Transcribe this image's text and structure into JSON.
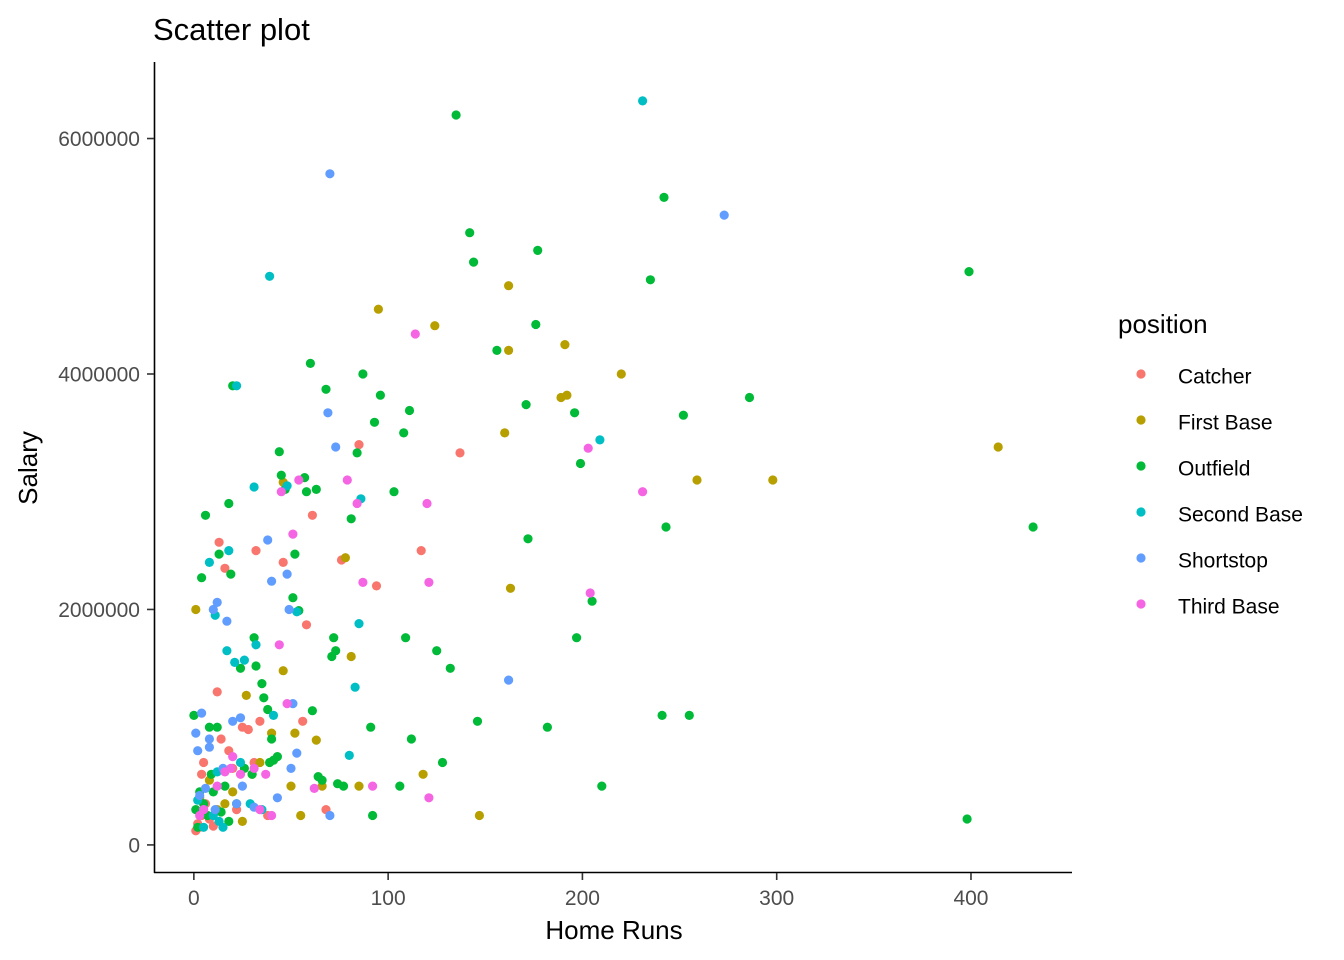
{
  "chart_data": {
    "type": "scatter",
    "title": "Scatter plot",
    "xlabel": "Home Runs",
    "ylabel": "Salary",
    "xlim": [
      -20,
      452
    ],
    "ylim": [
      -230000,
      6650000
    ],
    "xticks": [
      0,
      100,
      200,
      300,
      400
    ],
    "xtick_labels": [
      "0",
      "100",
      "200",
      "300",
      "400"
    ],
    "yticks": [
      0,
      2000000,
      4000000,
      6000000
    ],
    "ytick_labels": [
      "0",
      "2000000",
      "4000000",
      "6000000"
    ],
    "grid": false,
    "legend": {
      "title": "position",
      "placement": "right",
      "entries": [
        "Catcher",
        "First Base",
        "Outfield",
        "Second Base",
        "Shortstop",
        "Third Base"
      ]
    },
    "colors": {
      "Catcher": "#F8766D",
      "First Base": "#B79F00",
      "Outfield": "#00BA38",
      "Second Base": "#00BFC4",
      "Shortstop": "#619CFF",
      "Third Base": "#F564E3"
    },
    "series": [
      {
        "name": "Catcher",
        "points": [
          [
            1,
            120000
          ],
          [
            2,
            180000
          ],
          [
            3,
            150000
          ],
          [
            4,
            250000
          ],
          [
            5,
            700000
          ],
          [
            6,
            350000
          ],
          [
            8,
            220000
          ],
          [
            10,
            160000
          ],
          [
            12,
            1300000
          ],
          [
            13,
            2570000
          ],
          [
            14,
            900000
          ],
          [
            16,
            2350000
          ],
          [
            18,
            800000
          ],
          [
            20,
            650000
          ],
          [
            22,
            300000
          ],
          [
            25,
            1000000
          ],
          [
            28,
            980000
          ],
          [
            31,
            700000
          ],
          [
            32,
            2500000
          ],
          [
            34,
            1050000
          ],
          [
            38,
            250000
          ],
          [
            46,
            2400000
          ],
          [
            56,
            1050000
          ],
          [
            58,
            1870000
          ],
          [
            61,
            2800000
          ],
          [
            68,
            300000
          ],
          [
            76,
            2420000
          ],
          [
            85,
            3400000
          ],
          [
            94,
            2200000
          ],
          [
            117,
            2500000
          ],
          [
            137,
            3330000
          ],
          [
            4,
            600000
          ]
        ]
      },
      {
        "name": "First Base",
        "points": [
          [
            1,
            2000000
          ],
          [
            3,
            400000
          ],
          [
            8,
            550000
          ],
          [
            12,
            300000
          ],
          [
            16,
            350000
          ],
          [
            20,
            450000
          ],
          [
            25,
            200000
          ],
          [
            27,
            1270000
          ],
          [
            30,
            600000
          ],
          [
            34,
            700000
          ],
          [
            40,
            950000
          ],
          [
            46,
            1480000
          ],
          [
            46,
            3080000
          ],
          [
            50,
            500000
          ],
          [
            52,
            950000
          ],
          [
            55,
            250000
          ],
          [
            63,
            890000
          ],
          [
            66,
            500000
          ],
          [
            78,
            2440000
          ],
          [
            81,
            1600000
          ],
          [
            85,
            500000
          ],
          [
            95,
            4550000
          ],
          [
            118,
            600000
          ],
          [
            124,
            4410000
          ],
          [
            147,
            250000
          ],
          [
            160,
            3500000
          ],
          [
            162,
            4200000
          ],
          [
            162,
            4750000
          ],
          [
            163,
            2180000
          ],
          [
            189,
            3800000
          ],
          [
            191,
            4250000
          ],
          [
            192,
            3820000
          ],
          [
            220,
            4000000
          ],
          [
            259,
            3100000
          ],
          [
            298,
            3100000
          ],
          [
            414,
            3380000
          ]
        ]
      },
      {
        "name": "Outfield",
        "points": [
          [
            0,
            1100000
          ],
          [
            1,
            300000
          ],
          [
            2,
            150000
          ],
          [
            3,
            450000
          ],
          [
            4,
            2270000
          ],
          [
            5,
            350000
          ],
          [
            6,
            2800000
          ],
          [
            7,
            250000
          ],
          [
            8,
            1000000
          ],
          [
            9,
            600000
          ],
          [
            10,
            450000
          ],
          [
            12,
            1000000
          ],
          [
            13,
            2470000
          ],
          [
            14,
            280000
          ],
          [
            16,
            500000
          ],
          [
            18,
            2900000
          ],
          [
            18,
            200000
          ],
          [
            19,
            2300000
          ],
          [
            20,
            3900000
          ],
          [
            22,
            350000
          ],
          [
            24,
            1500000
          ],
          [
            26,
            650000
          ],
          [
            30,
            600000
          ],
          [
            31,
            1760000
          ],
          [
            32,
            1520000
          ],
          [
            35,
            1370000
          ],
          [
            36,
            1250000
          ],
          [
            38,
            1150000
          ],
          [
            39,
            700000
          ],
          [
            40,
            900000
          ],
          [
            41,
            720000
          ],
          [
            43,
            750000
          ],
          [
            44,
            3340000
          ],
          [
            45,
            3140000
          ],
          [
            47,
            3020000
          ],
          [
            51,
            2100000
          ],
          [
            52,
            2470000
          ],
          [
            54,
            1990000
          ],
          [
            57,
            3120000
          ],
          [
            58,
            3000000
          ],
          [
            60,
            4090000
          ],
          [
            61,
            1140000
          ],
          [
            63,
            3020000
          ],
          [
            64,
            580000
          ],
          [
            66,
            550000
          ],
          [
            68,
            3870000
          ],
          [
            71,
            1600000
          ],
          [
            72,
            1760000
          ],
          [
            73,
            1650000
          ],
          [
            74,
            520000
          ],
          [
            77,
            500000
          ],
          [
            81,
            2770000
          ],
          [
            84,
            3330000
          ],
          [
            87,
            4000000
          ],
          [
            91,
            1000000
          ],
          [
            92,
            250000
          ],
          [
            93,
            3590000
          ],
          [
            96,
            3820000
          ],
          [
            103,
            3000000
          ],
          [
            106,
            500000
          ],
          [
            108,
            3500000
          ],
          [
            109,
            1760000
          ],
          [
            111,
            3690000
          ],
          [
            112,
            900000
          ],
          [
            125,
            1650000
          ],
          [
            128,
            700000
          ],
          [
            132,
            1500000
          ],
          [
            135,
            6200000
          ],
          [
            142,
            5200000
          ],
          [
            144,
            4950000
          ],
          [
            146,
            1050000
          ],
          [
            156,
            4200000
          ],
          [
            171,
            3740000
          ],
          [
            172,
            2600000
          ],
          [
            176,
            4420000
          ],
          [
            177,
            5050000
          ],
          [
            182,
            1000000
          ],
          [
            196,
            3670000
          ],
          [
            197,
            1760000
          ],
          [
            199,
            3240000
          ],
          [
            205,
            2070000
          ],
          [
            210,
            500000
          ],
          [
            235,
            4800000
          ],
          [
            241,
            1100000
          ],
          [
            242,
            5500000
          ],
          [
            243,
            2700000
          ],
          [
            252,
            3650000
          ],
          [
            255,
            1100000
          ],
          [
            286,
            3800000
          ],
          [
            398,
            220000
          ],
          [
            399,
            4870000
          ],
          [
            432,
            2700000
          ]
        ]
      },
      {
        "name": "Second Base",
        "points": [
          [
            2,
            380000
          ],
          [
            5,
            150000
          ],
          [
            8,
            2400000
          ],
          [
            10,
            250000
          ],
          [
            11,
            1950000
          ],
          [
            12,
            620000
          ],
          [
            13,
            200000
          ],
          [
            15,
            150000
          ],
          [
            17,
            1650000
          ],
          [
            18,
            2500000
          ],
          [
            21,
            1550000
          ],
          [
            22,
            3900000
          ],
          [
            24,
            700000
          ],
          [
            26,
            1570000
          ],
          [
            29,
            350000
          ],
          [
            31,
            3040000
          ],
          [
            32,
            1700000
          ],
          [
            35,
            300000
          ],
          [
            39,
            4830000
          ],
          [
            41,
            1100000
          ],
          [
            48,
            3050000
          ],
          [
            53,
            1980000
          ],
          [
            80,
            760000
          ],
          [
            83,
            1340000
          ],
          [
            85,
            1880000
          ],
          [
            86,
            2940000
          ],
          [
            209,
            3440000
          ],
          [
            231,
            6320000
          ]
        ]
      },
      {
        "name": "Shortstop",
        "points": [
          [
            1,
            950000
          ],
          [
            2,
            800000
          ],
          [
            3,
            420000
          ],
          [
            4,
            1120000
          ],
          [
            5,
            300000
          ],
          [
            6,
            480000
          ],
          [
            8,
            900000
          ],
          [
            8,
            830000
          ],
          [
            10,
            2000000
          ],
          [
            11,
            300000
          ],
          [
            12,
            2060000
          ],
          [
            15,
            650000
          ],
          [
            17,
            1900000
          ],
          [
            20,
            1050000
          ],
          [
            22,
            350000
          ],
          [
            24,
            1080000
          ],
          [
            25,
            500000
          ],
          [
            31,
            320000
          ],
          [
            38,
            2590000
          ],
          [
            40,
            2240000
          ],
          [
            43,
            400000
          ],
          [
            48,
            2300000
          ],
          [
            49,
            2000000
          ],
          [
            50,
            650000
          ],
          [
            51,
            1200000
          ],
          [
            53,
            780000
          ],
          [
            69,
            3670000
          ],
          [
            70,
            5700000
          ],
          [
            70,
            250000
          ],
          [
            73,
            3380000
          ],
          [
            162,
            1400000
          ],
          [
            273,
            5350000
          ]
        ]
      },
      {
        "name": "Third Base",
        "points": [
          [
            3,
            250000
          ],
          [
            5,
            300000
          ],
          [
            12,
            500000
          ],
          [
            16,
            620000
          ],
          [
            19,
            650000
          ],
          [
            20,
            750000
          ],
          [
            24,
            600000
          ],
          [
            31,
            650000
          ],
          [
            34,
            300000
          ],
          [
            37,
            600000
          ],
          [
            40,
            250000
          ],
          [
            44,
            1700000
          ],
          [
            45,
            3000000
          ],
          [
            48,
            1200000
          ],
          [
            51,
            2640000
          ],
          [
            54,
            3100000
          ],
          [
            62,
            480000
          ],
          [
            79,
            3100000
          ],
          [
            84,
            2900000
          ],
          [
            87,
            2230000
          ],
          [
            92,
            500000
          ],
          [
            114,
            4340000
          ],
          [
            120,
            2900000
          ],
          [
            121,
            2230000
          ],
          [
            121,
            400000
          ],
          [
            203,
            3370000
          ],
          [
            204,
            2140000
          ],
          [
            231,
            3000000
          ]
        ]
      }
    ]
  }
}
